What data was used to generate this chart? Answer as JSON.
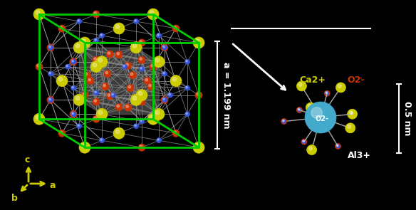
{
  "background_color": "#000000",
  "unit_cell_color": "#00cc00",
  "bond_color": "#cccccc",
  "ca_color": "#cccc00",
  "o_color": "#cc2200",
  "al_color": "#2244cc",
  "o2_cage_color": "#44aacc",
  "axis_color": "#cccc00",
  "label_color": "#ffffff",
  "arrow_color": "#cccccc",
  "dim_label": "a = 1.199 nm",
  "dim_label2": "0.5 nm",
  "ca_label": "Ca2+",
  "o_label": "O2-",
  "al_label": "Al3+",
  "o2_label": "O2-",
  "figsize": [
    5.84,
    2.95
  ],
  "dpi": 100
}
